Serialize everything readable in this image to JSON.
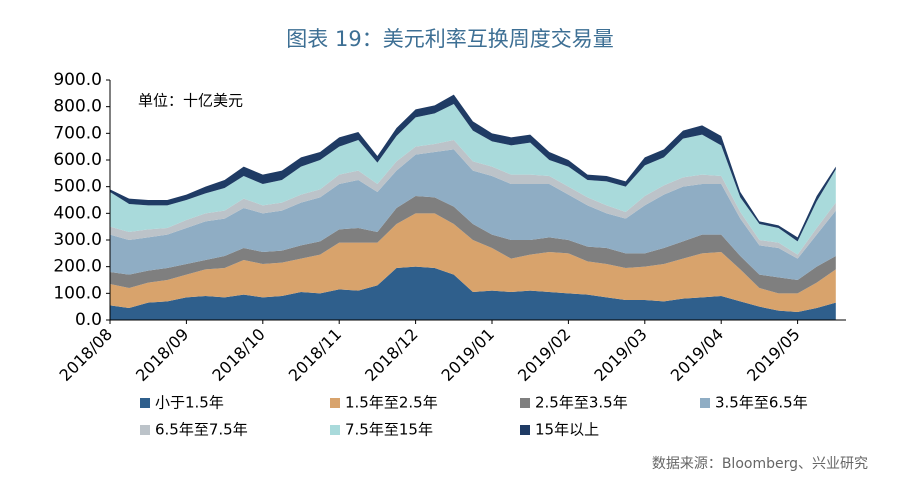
{
  "chart_data": {
    "type": "stacked_area",
    "title": "图表 19：美元利率互换周度交易量",
    "annotation": "单位：十亿美元",
    "source": "数据来源：Bloomberg、兴业研究",
    "categories": [
      "2018/08",
      null,
      null,
      null,
      "2018/09",
      null,
      null,
      null,
      "2018/10",
      null,
      null,
      null,
      "2018/11",
      null,
      null,
      null,
      "2018/12",
      null,
      null,
      null,
      "2019/01",
      null,
      null,
      null,
      "2019/02",
      null,
      null,
      null,
      "2019/03",
      null,
      null,
      null,
      "2019/04",
      null,
      null,
      null,
      "2019/05",
      null,
      null
    ],
    "ylim": [
      0,
      900
    ],
    "yticks": [
      {
        "value": 0,
        "label": "0.0"
      },
      {
        "value": 100,
        "label": "100.0"
      },
      {
        "value": 200,
        "label": "200.0"
      },
      {
        "value": 300,
        "label": "300.0"
      },
      {
        "value": 400,
        "label": "400.0"
      },
      {
        "value": 500,
        "label": "500.0"
      },
      {
        "value": 600,
        "label": "600.0"
      },
      {
        "value": 700,
        "label": "700.0"
      },
      {
        "value": 800,
        "label": "800.0"
      },
      {
        "value": 900,
        "label": "900.0"
      }
    ],
    "series": [
      {
        "name": "小于1.5年",
        "color": "#2f5f8c",
        "values": [
          55,
          45,
          65,
          70,
          85,
          90,
          85,
          95,
          85,
          90,
          105,
          100,
          115,
          110,
          130,
          195,
          200,
          195,
          170,
          105,
          110,
          105,
          110,
          105,
          100,
          95,
          85,
          75,
          75,
          70,
          80,
          85,
          90,
          70,
          50,
          35,
          30,
          45,
          65
        ]
      },
      {
        "name": "1.5年至2.5年",
        "color": "#d8a36c",
        "values": [
          80,
          75,
          75,
          80,
          85,
          100,
          110,
          130,
          125,
          125,
          125,
          145,
          175,
          180,
          160,
          165,
          200,
          205,
          190,
          195,
          160,
          125,
          135,
          150,
          150,
          125,
          125,
          120,
          125,
          140,
          150,
          165,
          165,
          120,
          70,
          65,
          70,
          95,
          125
        ]
      },
      {
        "name": "2.5年至3.5年",
        "color": "#7f7f7f",
        "values": [
          45,
          50,
          45,
          45,
          40,
          35,
          45,
          45,
          45,
          45,
          50,
          50,
          50,
          55,
          40,
          60,
          65,
          60,
          65,
          60,
          50,
          70,
          55,
          55,
          50,
          55,
          60,
          55,
          50,
          60,
          65,
          70,
          65,
          50,
          50,
          60,
          50,
          60,
          50
        ]
      },
      {
        "name": "3.5年至6.5年",
        "color": "#8fadc4",
        "values": [
          140,
          130,
          125,
          125,
          135,
          145,
          140,
          150,
          145,
          150,
          160,
          165,
          170,
          180,
          150,
          140,
          155,
          170,
          215,
          200,
          220,
          210,
          210,
          200,
          170,
          155,
          130,
          130,
          180,
          200,
          205,
          190,
          190,
          140,
          110,
          110,
          80,
          120,
          170
        ]
      },
      {
        "name": "6.5年至7.5年",
        "color": "#bcc3c9",
        "values": [
          30,
          30,
          30,
          25,
          30,
          30,
          30,
          35,
          30,
          30,
          30,
          30,
          35,
          35,
          30,
          35,
          30,
          30,
          35,
          35,
          35,
          35,
          35,
          30,
          30,
          30,
          30,
          25,
          35,
          35,
          35,
          35,
          30,
          25,
          20,
          20,
          15,
          25,
          30
        ]
      },
      {
        "name": "7.5年至15年",
        "color": "#a9dadb",
        "values": [
          130,
          105,
          90,
          85,
          75,
          75,
          85,
          85,
          80,
          85,
          105,
          110,
          105,
          115,
          80,
          95,
          110,
          115,
          135,
          115,
          95,
          110,
          120,
          60,
          75,
          65,
          90,
          95,
          115,
          105,
          145,
          150,
          115,
          55,
          60,
          55,
          50,
          100,
          125
        ]
      },
      {
        "name": "15年以上",
        "color": "#1f3b64",
        "values": [
          10,
          20,
          20,
          20,
          20,
          25,
          30,
          35,
          35,
          35,
          35,
          30,
          35,
          30,
          25,
          30,
          30,
          30,
          35,
          35,
          30,
          30,
          30,
          30,
          25,
          20,
          20,
          20,
          30,
          30,
          30,
          35,
          35,
          20,
          10,
          10,
          15,
          20,
          10
        ]
      }
    ]
  }
}
